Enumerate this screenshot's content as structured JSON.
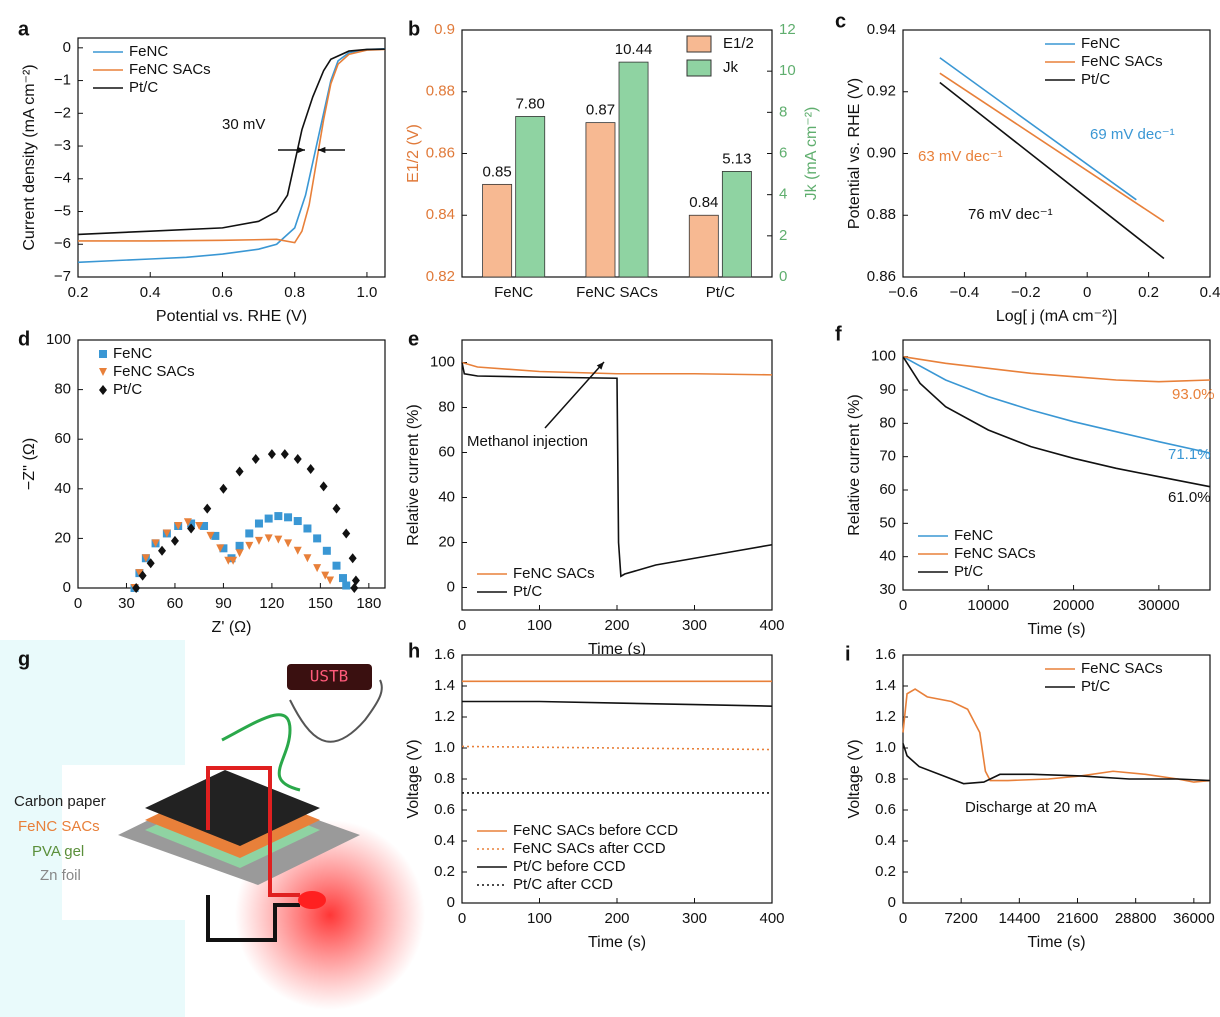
{
  "chart_data": [
    {
      "type": "line",
      "label": "a",
      "xlabel": "Potential vs. RHE (V)",
      "ylabel": "Current density (mA cm⁻²)",
      "xlim": [
        0.2,
        1.05
      ],
      "xticks": [
        0.2,
        0.4,
        0.6,
        0.8,
        {
          "value": 1,
          "label": "1.0"
        }
      ],
      "ylim": [
        -7,
        0.3
      ],
      "yticks": [
        0,
        {
          "value": -1,
          "label": "−1"
        },
        {
          "value": -2,
          "label": "−2"
        },
        {
          "value": -3,
          "label": "−3"
        },
        {
          "value": -4,
          "label": "−4"
        },
        {
          "value": -5,
          "label": "−5"
        },
        {
          "value": -6,
          "label": "−6"
        },
        {
          "value": -7,
          "label": "−7"
        }
      ],
      "legend": "upper left",
      "annotations": [
        {
          "text": "30 mV",
          "color": "#111111"
        }
      ],
      "series": [
        {
          "name": "FeNC",
          "color": "#3a97d4",
          "x": [
            0.2,
            0.3,
            0.4,
            0.5,
            0.6,
            0.7,
            0.75,
            0.8,
            0.83,
            0.86,
            0.88,
            0.9,
            0.92,
            0.95,
            1.0,
            1.05
          ],
          "values": [
            -6.55,
            -6.5,
            -6.45,
            -6.4,
            -6.3,
            -6.15,
            -6.0,
            -5.5,
            -4.5,
            -3.0,
            -2.0,
            -1.0,
            -0.4,
            -0.15,
            -0.05,
            -0.03
          ]
        },
        {
          "name": "FeNC SACs",
          "color": "#e8803a",
          "x": [
            0.2,
            0.4,
            0.6,
            0.75,
            0.8,
            0.82,
            0.84,
            0.86,
            0.88,
            0.9,
            0.92,
            0.95,
            1.0,
            1.05
          ],
          "values": [
            -5.9,
            -5.9,
            -5.88,
            -5.85,
            -5.95,
            -5.6,
            -4.8,
            -3.5,
            -2.2,
            -1.1,
            -0.5,
            -0.2,
            -0.07,
            -0.05
          ]
        },
        {
          "name": "Pt/C",
          "color": "#111111",
          "x": [
            0.2,
            0.4,
            0.6,
            0.7,
            0.75,
            0.78,
            0.8,
            0.82,
            0.85,
            0.88,
            0.9,
            0.95,
            1.0,
            1.05
          ],
          "values": [
            -5.7,
            -5.6,
            -5.5,
            -5.3,
            -5.0,
            -4.5,
            -3.5,
            -2.5,
            -1.5,
            -0.7,
            -0.35,
            -0.1,
            -0.05,
            -0.04
          ]
        }
      ]
    },
    {
      "type": "bar",
      "label": "b",
      "ylabel": "E1/2 (V)",
      "y2label": "Jk (mA cm⁻²)",
      "categories": [
        "FeNC",
        "FeNC SACs",
        "Pt/C"
      ],
      "ylim": [
        0.82,
        0.9
      ],
      "yticks": [
        0.82,
        0.84,
        0.86,
        0.88,
        0.9
      ],
      "y2lim": [
        0,
        12
      ],
      "y2ticks": [
        0,
        2,
        4,
        6,
        8,
        10,
        12
      ],
      "ycolor": "#e07a3a",
      "y2color": "#5fae6e",
      "legend": "upper right",
      "series": [
        {
          "name": "E1/2",
          "color": "#f7b992",
          "values": [
            0.85,
            0.87,
            0.84
          ]
        },
        {
          "name": "Jk",
          "color": "#8fd3a2",
          "axis": "y2",
          "values": [
            7.8,
            10.44,
            5.13
          ],
          "value_labels": [
            "7.80",
            "10.44",
            "5.13"
          ]
        }
      ]
    },
    {
      "type": "line",
      "label": "c",
      "xlabel": "Log[ j (mA cm⁻²)]",
      "ylabel": "Potential vs. RHE (V)",
      "xlim": [
        -0.6,
        0.4
      ],
      "xticks": [
        {
          "value": -0.6,
          "label": "−0.6"
        },
        {
          "value": -0.4,
          "label": "−0.4"
        },
        {
          "value": -0.2,
          "label": "−0.2"
        },
        0,
        0.2,
        0.4
      ],
      "ylim": [
        0.86,
        0.94
      ],
      "yticks": [
        0.86,
        0.88,
        {
          "value": 0.9,
          "label": "0.90"
        },
        0.92,
        0.94
      ],
      "legend": "upper right",
      "annotations": [
        {
          "text": "69 mV dec⁻¹",
          "color": "#3a97d4"
        },
        {
          "text": "63 mV dec⁻¹",
          "color": "#e8803a"
        },
        {
          "text": "76 mV dec⁻¹",
          "color": "#111111"
        }
      ],
      "series": [
        {
          "name": "FeNC",
          "color": "#3a97d4",
          "x": [
            -0.48,
            0.16
          ],
          "values": [
            0.931,
            0.885
          ]
        },
        {
          "name": "FeNC SACs",
          "color": "#e8803a",
          "x": [
            -0.48,
            0.25
          ],
          "values": [
            0.926,
            0.878
          ]
        },
        {
          "name": "Pt/C",
          "color": "#111111",
          "x": [
            -0.48,
            0.25
          ],
          "values": [
            0.923,
            0.866
          ]
        }
      ]
    },
    {
      "type": "scatter",
      "label": "d",
      "xlabel": "Z' (Ω)",
      "ylabel": "−Z'' (Ω)",
      "xlim": [
        0,
        190
      ],
      "xticks": [
        0,
        30,
        60,
        90,
        120,
        150,
        180
      ],
      "ylim": [
        0,
        100
      ],
      "yticks": [
        0,
        20,
        40,
        60,
        80,
        100
      ],
      "legend": "upper left",
      "series": [
        {
          "name": "FeNC",
          "color": "#3a97d4",
          "marker": "square",
          "x": [
            35,
            38,
            42,
            48,
            55,
            62,
            70,
            78,
            85,
            90,
            95,
            100,
            106,
            112,
            118,
            124,
            130,
            136,
            142,
            148,
            154,
            160,
            164,
            166
          ],
          "values": [
            0,
            6,
            12,
            18,
            22,
            25,
            26,
            25,
            21,
            16,
            12,
            17,
            22,
            26,
            28,
            29,
            28.5,
            27,
            24,
            20,
            15,
            9,
            4,
            1
          ]
        },
        {
          "name": "FeNC SACs",
          "color": "#e8803a",
          "marker": "triangle",
          "x": [
            35,
            38,
            42,
            48,
            55,
            62,
            68,
            75,
            82,
            88,
            93,
            96,
            100,
            106,
            112,
            118,
            124,
            130,
            136,
            142,
            148,
            153,
            156
          ],
          "values": [
            0,
            6,
            12,
            18,
            22,
            25,
            26.5,
            25,
            21,
            16,
            11,
            11,
            14,
            17,
            19,
            20,
            19.5,
            18,
            15,
            12,
            8,
            5,
            3
          ]
        },
        {
          "name": "Pt/C",
          "color": "#111111",
          "marker": "diamond",
          "x": [
            36,
            40,
            45,
            52,
            60,
            70,
            80,
            90,
            100,
            110,
            120,
            128,
            136,
            144,
            152,
            160,
            166,
            170,
            172,
            171
          ],
          "values": [
            0,
            5,
            10,
            15,
            19,
            24,
            32,
            40,
            47,
            52,
            54,
            54,
            52,
            48,
            41,
            32,
            22,
            12,
            3,
            0
          ]
        }
      ]
    },
    {
      "type": "line",
      "label": "e",
      "xlabel": "Time (s)",
      "ylabel": "Relative current (%)",
      "xlim": [
        0,
        400
      ],
      "xticks": [
        0,
        100,
        200,
        300,
        400
      ],
      "ylim": [
        -10,
        110
      ],
      "yticks": [
        0,
        20,
        40,
        60,
        80,
        100
      ],
      "legend": "lower left",
      "annotations": [
        {
          "text": "Methanol injection",
          "color": "#111111"
        }
      ],
      "series": [
        {
          "name": "FeNC SACs",
          "color": "#e8803a",
          "x": [
            0,
            20,
            100,
            200,
            300,
            400
          ],
          "values": [
            100,
            98,
            96,
            95,
            95,
            94.5
          ]
        },
        {
          "name": "Pt/C",
          "color": "#111111",
          "x": [
            0,
            3,
            20,
            100,
            200,
            202,
            205,
            210,
            250,
            300,
            350,
            400
          ],
          "values": [
            100,
            95,
            94,
            93.5,
            93,
            20,
            5,
            6,
            10,
            13,
            16,
            19
          ]
        }
      ]
    },
    {
      "type": "line",
      "label": "f",
      "xlabel": "Time (s)",
      "ylabel": "Relative current (%)",
      "xlim": [
        0,
        36000
      ],
      "xticks": [
        0,
        10000,
        20000,
        30000
      ],
      "ylim": [
        30,
        105
      ],
      "yticks": [
        30,
        40,
        50,
        60,
        70,
        80,
        90,
        100
      ],
      "legend": "lower left",
      "annotations": [
        {
          "text": "93.0%",
          "color": "#e8803a"
        },
        {
          "text": "71.1%",
          "color": "#3a97d4"
        },
        {
          "text": "61.0%",
          "color": "#111111"
        }
      ],
      "series": [
        {
          "name": "FeNC",
          "color": "#3a97d4",
          "x": [
            0,
            5000,
            10000,
            15000,
            20000,
            25000,
            30000,
            36000
          ],
          "values": [
            100,
            93,
            88,
            84,
            80.5,
            77.5,
            74.5,
            71.1
          ]
        },
        {
          "name": "FeNC SACs",
          "color": "#e8803a",
          "x": [
            0,
            5000,
            10000,
            15000,
            20000,
            25000,
            30000,
            36000
          ],
          "values": [
            100,
            98,
            96.5,
            95,
            94,
            93,
            92.5,
            93
          ]
        },
        {
          "name": "Pt/C",
          "color": "#111111",
          "x": [
            0,
            2000,
            5000,
            10000,
            15000,
            20000,
            25000,
            30000,
            36000
          ],
          "values": [
            100,
            92,
            85,
            78,
            73,
            69.5,
            66.5,
            64,
            61
          ]
        }
      ]
    },
    {
      "type": "diagram",
      "label": "g",
      "display": "USTB",
      "layers": [
        "Carbon paper",
        "FeNC SACs",
        "PVA gel",
        "Zn foil"
      ],
      "layer_colors": [
        "#222222",
        "#e8803a",
        "#5a8f3a",
        "#888888"
      ]
    },
    {
      "type": "line",
      "label": "h",
      "xlabel": "Time (s)",
      "ylabel": "Voltage (V)",
      "xlim": [
        0,
        400
      ],
      "xticks": [
        0,
        100,
        200,
        300,
        400
      ],
      "ylim": [
        0,
        1.6
      ],
      "yticks": [
        0,
        0.2,
        0.4,
        0.6,
        0.8,
        {
          "value": 1,
          "label": "1.0"
        },
        1.2,
        1.4,
        1.6
      ],
      "legend": "lower left",
      "series": [
        {
          "name": "FeNC SACs before CCD",
          "color": "#e8803a",
          "style": "solid",
          "x": [
            0,
            400
          ],
          "values": [
            1.43,
            1.43
          ]
        },
        {
          "name": "FeNC SACs after CCD",
          "color": "#e8803a",
          "style": "dotted",
          "x": [
            0,
            400
          ],
          "values": [
            1.01,
            0.99
          ]
        },
        {
          "name": "Pt/C before CCD",
          "color": "#111111",
          "style": "solid",
          "x": [
            0,
            100,
            200,
            300,
            400
          ],
          "values": [
            1.3,
            1.3,
            1.29,
            1.28,
            1.27
          ]
        },
        {
          "name": "Pt/C after CCD",
          "color": "#111111",
          "style": "dotted",
          "x": [
            0,
            400
          ],
          "values": [
            0.71,
            0.71
          ]
        }
      ]
    },
    {
      "type": "line",
      "label": "i",
      "xlabel": "Time (s)",
      "ylabel": "Voltage (V)",
      "xlim": [
        0,
        38000
      ],
      "xticks": [
        0,
        7200,
        14400,
        21600,
        28800,
        36000
      ],
      "ylim": [
        0,
        1.6
      ],
      "yticks": [
        0,
        0.2,
        0.4,
        0.6,
        0.8,
        {
          "value": 1,
          "label": "1.0"
        },
        1.2,
        1.4,
        1.6
      ],
      "legend": "upper right",
      "annotations": [
        {
          "text": "Discharge at 20 mA",
          "color": "#111111"
        }
      ],
      "series": [
        {
          "name": "FeNC SACs",
          "color": "#e8803a",
          "x": [
            0,
            500,
            1500,
            3000,
            6000,
            8000,
            9500,
            10200,
            10800,
            13000,
            18000,
            22000,
            26000,
            30000,
            34000,
            36000,
            38000
          ],
          "values": [
            1.1,
            1.35,
            1.38,
            1.33,
            1.3,
            1.25,
            1.1,
            0.85,
            0.79,
            0.79,
            0.8,
            0.82,
            0.85,
            0.83,
            0.8,
            0.78,
            0.79
          ]
        },
        {
          "name": "Pt/C",
          "color": "#111111",
          "x": [
            0,
            500,
            2000,
            5000,
            7500,
            10000,
            12000,
            16000,
            22000,
            28000,
            34000,
            38000
          ],
          "values": [
            1.03,
            0.95,
            0.88,
            0.82,
            0.77,
            0.78,
            0.83,
            0.83,
            0.82,
            0.8,
            0.8,
            0.79
          ]
        }
      ]
    }
  ]
}
